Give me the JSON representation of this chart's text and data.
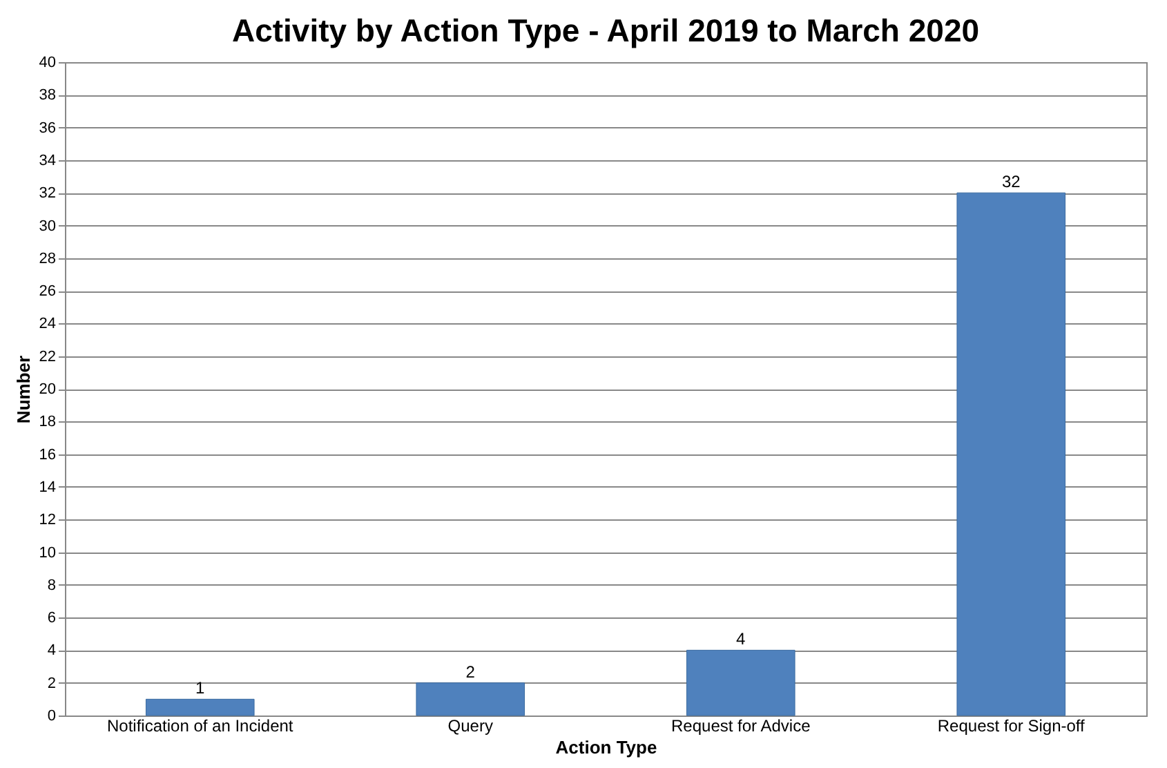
{
  "chart_data": {
    "type": "bar",
    "title": "Activity by Action Type - April 2019 to March 2020",
    "xlabel": "Action Type",
    "ylabel": "Number",
    "categories": [
      "Notification of an Incident",
      "Query",
      "Request for Advice",
      "Request for Sign-off"
    ],
    "values": [
      1,
      2,
      4,
      32
    ],
    "color": "#4f81bd",
    "ylim": [
      0,
      40
    ],
    "yticks": [
      0,
      2,
      4,
      6,
      8,
      10,
      12,
      14,
      16,
      18,
      20,
      22,
      24,
      26,
      28,
      30,
      32,
      34,
      36,
      38,
      40
    ],
    "grid": "y",
    "data_labels": true
  }
}
